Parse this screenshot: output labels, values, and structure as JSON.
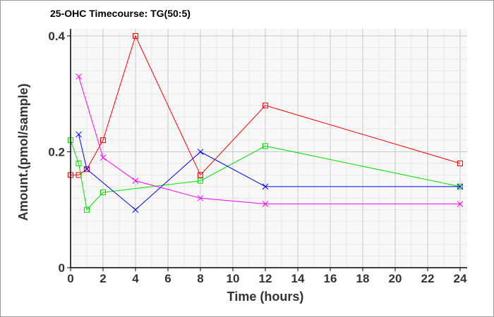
{
  "chart_data": {
    "type": "line",
    "title": "25-OHC Timecourse: TG(50:5)",
    "xlabel": "Time (hours)",
    "ylabel": "Amount.(pmol/sample)",
    "xlim": [
      0,
      24
    ],
    "ylim": [
      0,
      0.4
    ],
    "xticks": [
      "0",
      "2",
      "4",
      "6",
      "8",
      "10",
      "12",
      "14",
      "16",
      "18",
      "20",
      "22",
      "24"
    ],
    "yticks": [
      "0",
      "0.2",
      "0.4"
    ],
    "grid": true,
    "series": [
      {
        "name": "red",
        "color": "#ff0000",
        "marker": "square",
        "x": [
          0,
          0.5,
          1,
          2,
          4,
          8,
          12,
          24
        ],
        "y": [
          0.16,
          0.16,
          0.17,
          0.22,
          0.4,
          0.16,
          0.28,
          0.18
        ]
      },
      {
        "name": "green",
        "color": "#00e000",
        "marker": "square",
        "x": [
          0,
          0.5,
          1,
          2,
          8,
          12,
          24
        ],
        "y": [
          0.22,
          0.18,
          0.1,
          0.13,
          0.15,
          0.21,
          0.14
        ]
      },
      {
        "name": "blue",
        "color": "#0000ff",
        "marker": "x",
        "x": [
          0.5,
          1,
          4,
          8,
          12,
          24
        ],
        "y": [
          0.23,
          0.17,
          0.1,
          0.2,
          0.14,
          0.14
        ]
      },
      {
        "name": "magenta",
        "color": "#ff00ff",
        "marker": "x",
        "x": [
          0.5,
          2,
          4,
          8,
          12,
          24
        ],
        "y": [
          0.33,
          0.19,
          0.15,
          0.12,
          0.11,
          0.11
        ]
      }
    ]
  }
}
